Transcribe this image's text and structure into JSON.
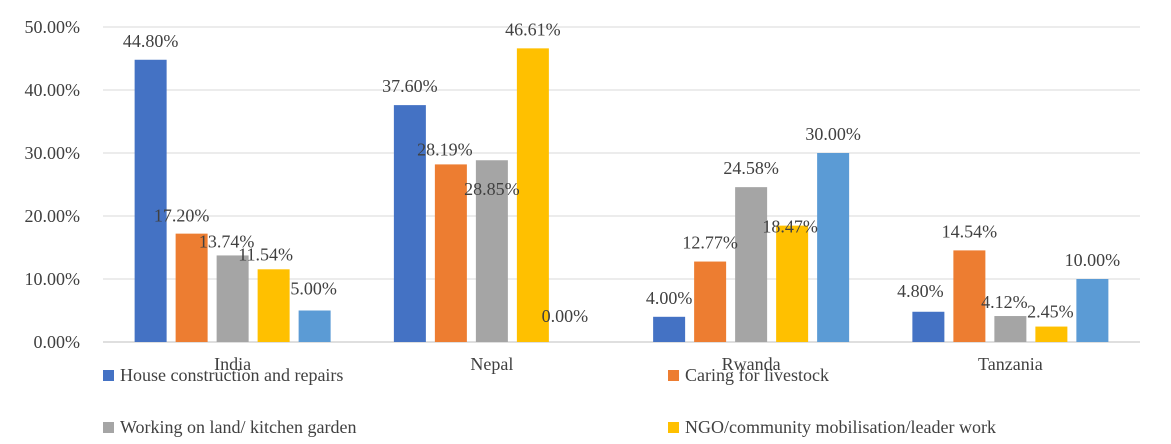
{
  "chart_data": {
    "type": "bar",
    "categories": [
      "India",
      "Nepal",
      "Rwanda",
      "Tanzania"
    ],
    "series": [
      {
        "name": "House construction and repairs",
        "color": "#4472C4",
        "values": [
          44.8,
          37.6,
          4.0,
          4.8
        ],
        "labels": [
          "44.80%",
          "37.60%",
          "4.00%",
          "4.80%"
        ]
      },
      {
        "name": "Caring for livestock",
        "color": "#ED7D31",
        "values": [
          17.2,
          28.19,
          12.77,
          14.54
        ],
        "labels": [
          "17.20%",
          "28.19%",
          "12.77%",
          "14.54%"
        ]
      },
      {
        "name": "Working on land/ kitchen garden",
        "color": "#A5A5A5",
        "values": [
          13.74,
          28.85,
          24.58,
          4.12
        ],
        "labels": [
          "13.74%",
          "28.85%",
          "24.58%",
          "4.12%"
        ]
      },
      {
        "name": "NGO/community mobilisation/leader work",
        "color": "#FFC000",
        "values": [
          11.54,
          46.61,
          18.47,
          2.45
        ],
        "labels": [
          "11.54%",
          "46.61%",
          "18.47%",
          "2.45%"
        ]
      },
      {
        "name": "",
        "color": "#5B9BD5",
        "values": [
          5.0,
          0.0,
          30.0,
          10.0
        ],
        "labels": [
          "5.00%",
          "0.00%",
          "30.00%",
          "10.00%"
        ]
      }
    ],
    "ylim": [
      0,
      50
    ],
    "yticks": [
      "0.00%",
      "10.00%",
      "20.00%",
      "30.00%",
      "40.00%",
      "50.00%"
    ],
    "grid": true,
    "legend_position": "bottom"
  }
}
